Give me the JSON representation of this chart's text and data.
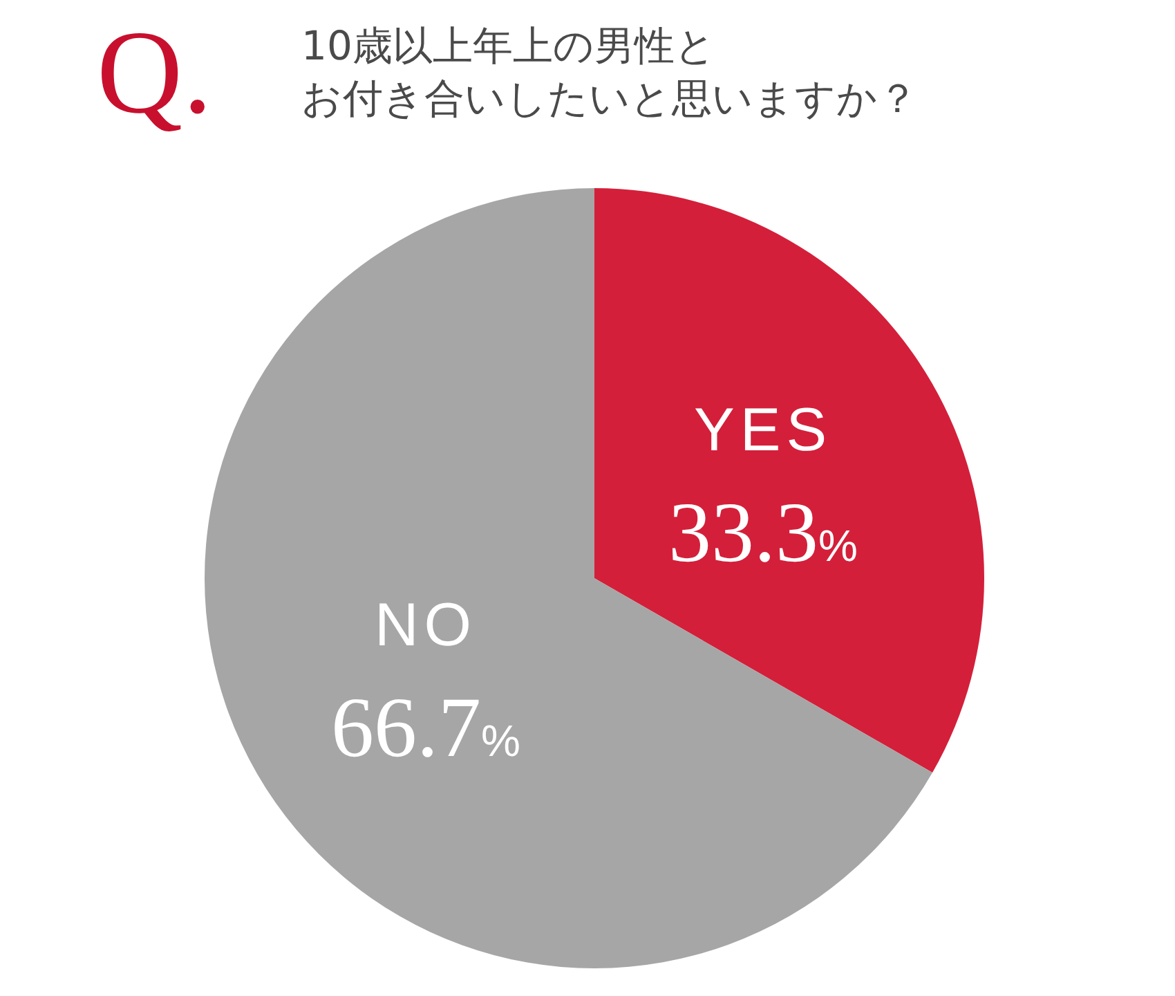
{
  "chart_data": {
    "type": "pie",
    "title": "10歳以上年上の男性と",
    "subtitle": "お付き合いしたいと思いますか？",
    "annotations": [
      "Q."
    ],
    "categories": [
      "YES",
      "NO"
    ],
    "values": [
      33.3,
      66.7
    ],
    "colors": [
      "#d41f3a",
      "#a6a6a6"
    ],
    "value_labels": [
      "33.3%",
      "66.7%"
    ],
    "legend": false
  }
}
